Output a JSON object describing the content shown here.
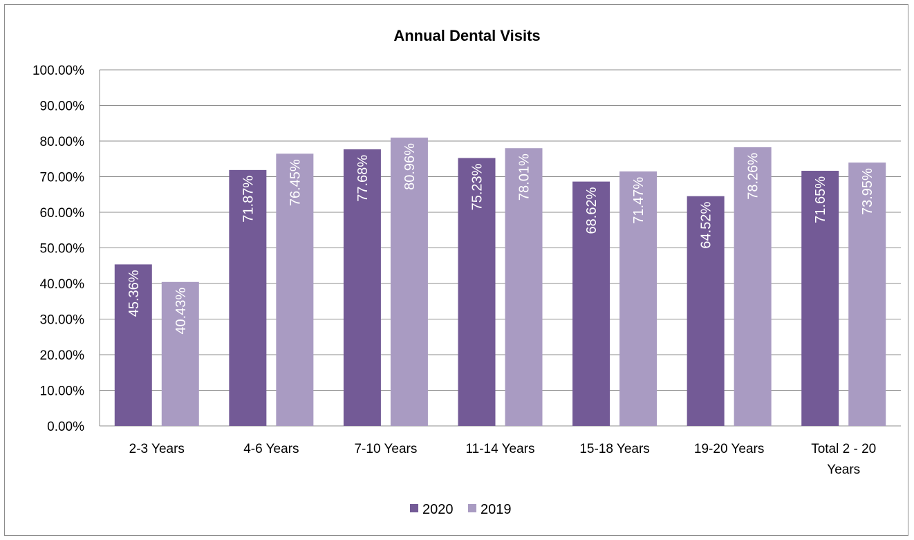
{
  "chart_data": {
    "type": "bar",
    "title": "Annual Dental Visits",
    "categories": [
      "2-3 Years",
      "4-6 Years",
      "7-10 Years",
      "11-14 Years",
      "15-18 Years",
      "19-20 Years",
      "Total 2 - 20 Years"
    ],
    "series": [
      {
        "name": "2020",
        "color": "#735A96",
        "values": [
          45.36,
          71.87,
          77.68,
          75.23,
          68.62,
          64.52,
          71.65
        ],
        "labels": [
          "45.36%",
          "71.87%",
          "77.68%",
          "75.23%",
          "68.62%",
          "64.52%",
          "71.65%"
        ]
      },
      {
        "name": "2019",
        "color": "#A99BC2",
        "values": [
          40.43,
          76.45,
          80.96,
          78.01,
          71.47,
          78.26,
          73.95
        ],
        "labels": [
          "40.43%",
          "76.45%",
          "80.96%",
          "78.01%",
          "71.47%",
          "78.26%",
          "73.95%"
        ]
      }
    ],
    "yticks": [
      "0.00%",
      "10.00%",
      "20.00%",
      "30.00%",
      "40.00%",
      "50.00%",
      "60.00%",
      "70.00%",
      "80.00%",
      "90.00%",
      "100.00%"
    ],
    "ylim": [
      0,
      100
    ],
    "grid": true,
    "gridColor": "#8c8c8c",
    "legend_position": "bottom"
  }
}
